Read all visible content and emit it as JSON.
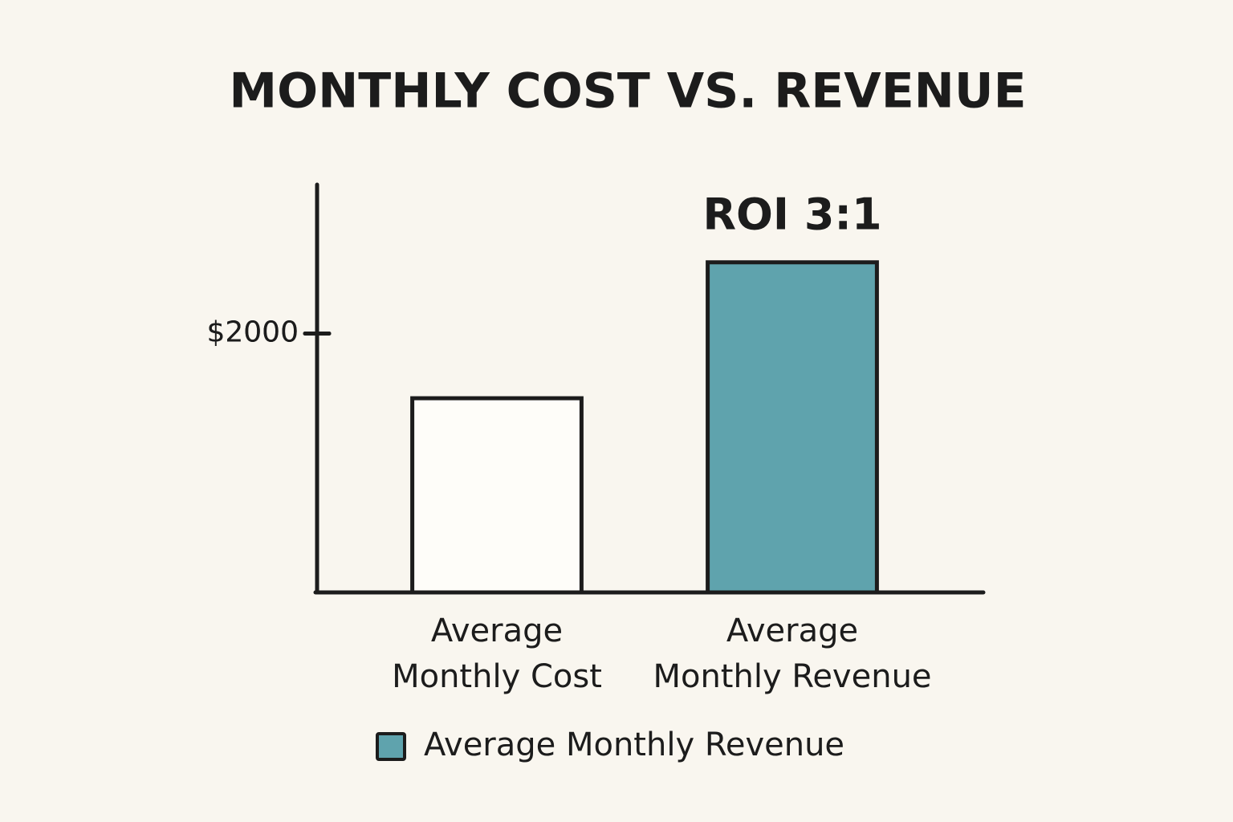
{
  "chart_data": {
    "type": "bar",
    "title": "MONTHLY COST VS. REVENUE",
    "categories": [
      "Average Monthly Cost",
      "Average Monthly Revenue"
    ],
    "values": [
      1500,
      2550
    ],
    "colors": [
      "#fefdf9",
      "#5fa3ad"
    ],
    "annotation": {
      "text": "ROI 3:1",
      "category": 1
    },
    "legend": [
      {
        "name": "Average Monthly Revenue",
        "color": "#5fa3ad"
      }
    ],
    "ylim": [
      0,
      3150
    ],
    "yticks": [
      {
        "value": 2000,
        "label": "$2000"
      },
      {
        "value": 2000,
        "label": "$2000"
      }
    ],
    "grid": false
  }
}
